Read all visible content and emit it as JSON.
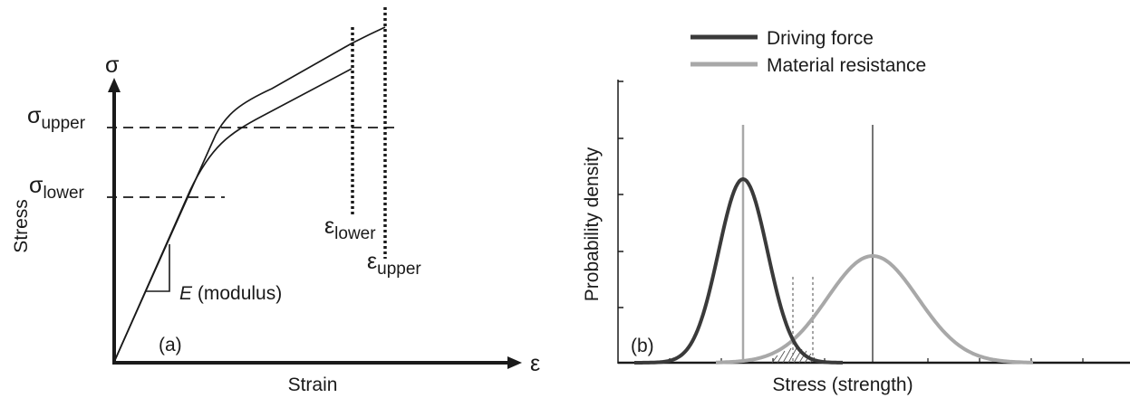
{
  "panel_a": {
    "panel_label": "(a)",
    "y_symbol": "σ",
    "x_symbol": "ε",
    "y_axis_label": "Stress",
    "x_axis_label": "Strain",
    "sigma_upper": {
      "base": "σ",
      "sub": "upper"
    },
    "sigma_lower": {
      "base": "σ",
      "sub": "lower"
    },
    "eps_lower": {
      "base": "ε",
      "sub": "lower"
    },
    "eps_upper": {
      "base": "ε",
      "sub": "upper"
    },
    "modulus": {
      "symbol": "E",
      "text": " (modulus)"
    }
  },
  "panel_b": {
    "panel_label": "(b)",
    "y_axis_label": "Probability density",
    "x_axis_label": "Stress (strength)",
    "legend": [
      {
        "label": "Driving force",
        "color": "#3a3a3a"
      },
      {
        "label": "Material resistance",
        "color": "#a8a8a8"
      }
    ]
  },
  "colors": {
    "ink": "#1a1a1a",
    "curve_dark": "#3a3a3a",
    "curve_light": "#a8a8a8",
    "grid_light": "#9a9a9a"
  }
}
